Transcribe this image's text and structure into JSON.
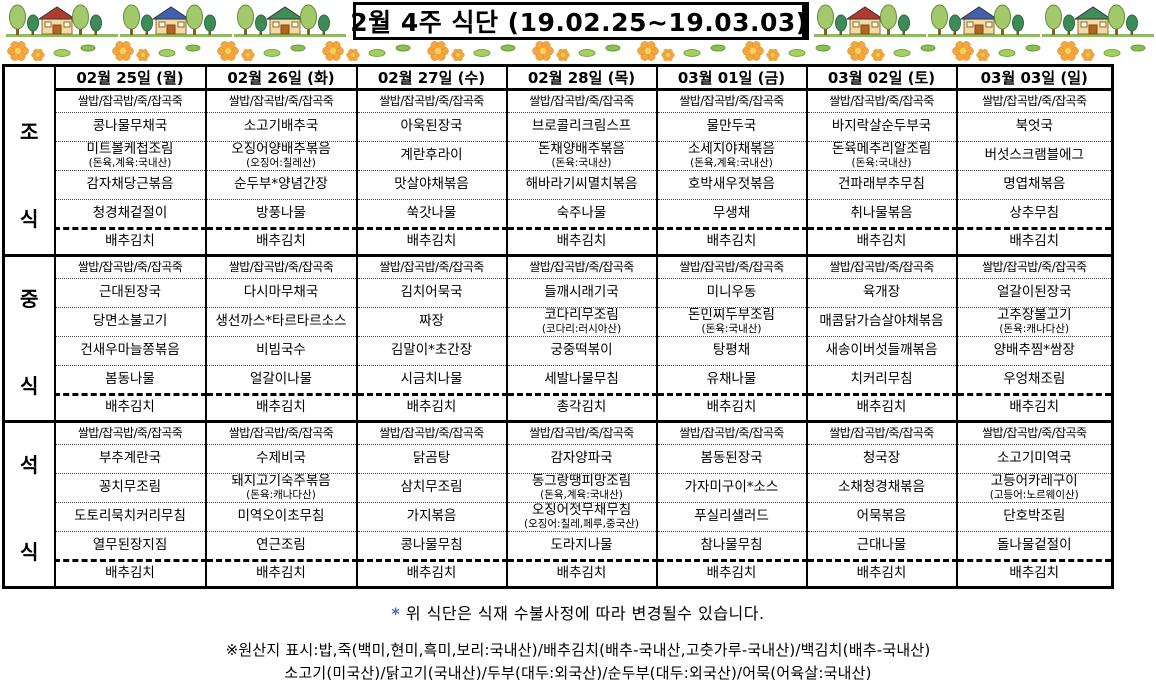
{
  "title": "2월 4주 식단 (19.02.25~19.03.03)",
  "decor": {
    "house_roof_colors": [
      "#b23b2e",
      "#4060b0",
      "#3e8e5a"
    ],
    "flower_color": "#f3a63d",
    "leaf_color": "#a5cf63",
    "grass_color": "#8cc152"
  },
  "table": {
    "day_headers": [
      "02월 25일 (월)",
      "02월 26일 (화)",
      "02월 27일 (수)",
      "02월 28일 (목)",
      "03월 01일 (금)",
      "03월 02일 (토)",
      "03월 03일 (일)"
    ],
    "sections": [
      {
        "id": "breakfast",
        "label": [
          "조",
          "식"
        ],
        "days": [
          {
            "items": [
              {
                "name": "쌀밥/잡곡밥/죽/잡곡죽"
              },
              {
                "name": "콩나물무채국"
              },
              {
                "name": "미트볼케첩조림",
                "origin": "(돈육,계육:국내산)"
              },
              {
                "name": "감자채당근볶음"
              },
              {
                "name": "청경채겉절이"
              },
              {
                "name": "배추김치"
              }
            ]
          },
          {
            "items": [
              {
                "name": "쌀밥/잡곡밥/죽/잡곡죽"
              },
              {
                "name": "소고기배추국"
              },
              {
                "name": "오징어양배추볶음",
                "origin": "(오징어:칠레산)"
              },
              {
                "name": "순두부*양념간장"
              },
              {
                "name": "방풍나물"
              },
              {
                "name": "배추김치"
              }
            ]
          },
          {
            "items": [
              {
                "name": "쌀밥/잡곡밥/죽/잡곡죽"
              },
              {
                "name": "아욱된장국"
              },
              {
                "name": "계란후라이"
              },
              {
                "name": "맛살야채볶음"
              },
              {
                "name": "쑥갓나물"
              },
              {
                "name": "배추김치"
              }
            ]
          },
          {
            "items": [
              {
                "name": "쌀밥/잡곡밥/죽/잡곡죽"
              },
              {
                "name": "브로콜리크림스프"
              },
              {
                "name": "돈채양배추볶음",
                "origin": "(돈육:국내산)"
              },
              {
                "name": "해바라기씨멸치볶음"
              },
              {
                "name": "숙주나물"
              },
              {
                "name": "배추김치"
              }
            ]
          },
          {
            "items": [
              {
                "name": "쌀밥/잡곡밥/죽/잡곡죽"
              },
              {
                "name": "물만두국"
              },
              {
                "name": "소세지야채볶음",
                "origin": "(돈육,계육:국내산)"
              },
              {
                "name": "호박새우젓볶음"
              },
              {
                "name": "무생채"
              },
              {
                "name": "배추김치"
              }
            ]
          },
          {
            "items": [
              {
                "name": "쌀밥/잡곡밥/죽/잡곡죽"
              },
              {
                "name": "바지락살순두부국"
              },
              {
                "name": "돈육메추리알조림",
                "origin": "(돈육:국내산)"
              },
              {
                "name": "건파래부추무침"
              },
              {
                "name": "취나물볶음"
              },
              {
                "name": "배추김치"
              }
            ]
          },
          {
            "items": [
              {
                "name": "쌀밥/잡곡밥/죽/잡곡죽"
              },
              {
                "name": "북엇국"
              },
              {
                "name": "버섯스크램블에그"
              },
              {
                "name": "명엽채볶음"
              },
              {
                "name": "상추무침"
              },
              {
                "name": "배추김치"
              }
            ]
          }
        ]
      },
      {
        "id": "lunch",
        "label": [
          "중",
          "식"
        ],
        "days": [
          {
            "items": [
              {
                "name": "쌀밥/잡곡밥/죽/잡곡죽"
              },
              {
                "name": "근대된장국"
              },
              {
                "name": "당면소불고기"
              },
              {
                "name": "건새우마늘쫑볶음"
              },
              {
                "name": "봄동나물"
              },
              {
                "name": "배추김치"
              }
            ]
          },
          {
            "items": [
              {
                "name": "쌀밥/잡곡밥/죽/잡곡죽"
              },
              {
                "name": "다시마무채국"
              },
              {
                "name": "생선까스*타르타르소스"
              },
              {
                "name": "비빔국수"
              },
              {
                "name": "얼갈이나물"
              },
              {
                "name": "배추김치"
              }
            ]
          },
          {
            "items": [
              {
                "name": "쌀밥/잡곡밥/죽/잡곡죽"
              },
              {
                "name": "김치어묵국"
              },
              {
                "name": "짜장"
              },
              {
                "name": "김말이*초간장"
              },
              {
                "name": "시금치나물"
              },
              {
                "name": "배추김치"
              }
            ]
          },
          {
            "items": [
              {
                "name": "쌀밥/잡곡밥/죽/잡곡죽"
              },
              {
                "name": "들깨시래기국"
              },
              {
                "name": "코다리무조림",
                "origin": "(코다리:러시아산)"
              },
              {
                "name": "궁중떡볶이"
              },
              {
                "name": "세발나물무침"
              },
              {
                "name": "총각김치"
              }
            ]
          },
          {
            "items": [
              {
                "name": "쌀밥/잡곡밥/죽/잡곡죽"
              },
              {
                "name": "미니우동"
              },
              {
                "name": "돈민찌두부조림",
                "origin": "(돈육:국내산)"
              },
              {
                "name": "탕평채"
              },
              {
                "name": "유채나물"
              },
              {
                "name": "배추김치"
              }
            ]
          },
          {
            "items": [
              {
                "name": "쌀밥/잡곡밥/죽/잡곡죽"
              },
              {
                "name": "육개장"
              },
              {
                "name": "매콤닭가슴살야채볶음"
              },
              {
                "name": "새송이버섯들깨볶음"
              },
              {
                "name": "치커리무침"
              },
              {
                "name": "배추김치"
              }
            ]
          },
          {
            "items": [
              {
                "name": "쌀밥/잡곡밥/죽/잡곡죽"
              },
              {
                "name": "얼갈이된장국"
              },
              {
                "name": "고추장불고기",
                "origin": "(돈육:캐나다산)"
              },
              {
                "name": "양배추찜*쌈장"
              },
              {
                "name": "우엉채조림"
              },
              {
                "name": "배추김치"
              }
            ]
          }
        ]
      },
      {
        "id": "dinner",
        "label": [
          "석",
          "식"
        ],
        "days": [
          {
            "items": [
              {
                "name": "쌀밥/잡곡밥/죽/잡곡죽"
              },
              {
                "name": "부추계란국"
              },
              {
                "name": "꽁치무조림"
              },
              {
                "name": "도토리묵치커리무침"
              },
              {
                "name": "열무된장지짐"
              },
              {
                "name": "배추김치"
              }
            ]
          },
          {
            "items": [
              {
                "name": "쌀밥/잡곡밥/죽/잡곡죽"
              },
              {
                "name": "수제비국"
              },
              {
                "name": "돼지고기숙주볶음",
                "origin": "(돈육:캐나다산)"
              },
              {
                "name": "미역오이초무침"
              },
              {
                "name": "연근조림"
              },
              {
                "name": "배추김치"
              }
            ]
          },
          {
            "items": [
              {
                "name": "쌀밥/잡곡밥/죽/잡곡죽"
              },
              {
                "name": "닭곰탕"
              },
              {
                "name": "삼치무조림"
              },
              {
                "name": "가지볶음"
              },
              {
                "name": "콩나물무침"
              },
              {
                "name": "배추김치"
              }
            ]
          },
          {
            "items": [
              {
                "name": "쌀밥/잡곡밥/죽/잡곡죽"
              },
              {
                "name": "감자양파국"
              },
              {
                "name": "동그랑땡피망조림",
                "origin": "(돈육,계육:국내산)"
              },
              {
                "name": "오징어젓무채무침",
                "origin": "(오징어:칠레,페루,중국산)"
              },
              {
                "name": "도라지나물"
              },
              {
                "name": "배추김치"
              }
            ]
          },
          {
            "items": [
              {
                "name": "쌀밥/잡곡밥/죽/잡곡죽"
              },
              {
                "name": "봄동된장국"
              },
              {
                "name": "가자미구이*소스"
              },
              {
                "name": "푸실리샐러드"
              },
              {
                "name": "참나물무침"
              },
              {
                "name": "배추김치"
              }
            ]
          },
          {
            "items": [
              {
                "name": "쌀밥/잡곡밥/죽/잡곡죽"
              },
              {
                "name": "청국장"
              },
              {
                "name": "소채청경채볶음"
              },
              {
                "name": "어묵볶음"
              },
              {
                "name": "근대나물"
              },
              {
                "name": "배추김치"
              }
            ]
          },
          {
            "items": [
              {
                "name": "쌀밥/잡곡밥/죽/잡곡죽"
              },
              {
                "name": "소고기미역국"
              },
              {
                "name": "고등어카레구이",
                "origin": "(고등어:노르웨이산)"
              },
              {
                "name": "단호박조림"
              },
              {
                "name": "돌나물겉절이"
              },
              {
                "name": "배추김치"
              }
            ]
          }
        ]
      }
    ]
  },
  "notes": {
    "asterisk": "*",
    "change_notice": "위 식단은 식재 수불사정에 따라 변경될수 있습니다.",
    "origin_line1": "※원산지 표시:밥,죽(백미,현미,흑미,보리:국내산)/배추김치(배추-국내산,고춧가루-국내산)/백김치(배추-국내산)",
    "origin_line2": "소고기(미국산)/닭고기(국내산)/두부(대두:외국산)/순두부(대두:외국산)/어묵(어육살:국내산)"
  }
}
